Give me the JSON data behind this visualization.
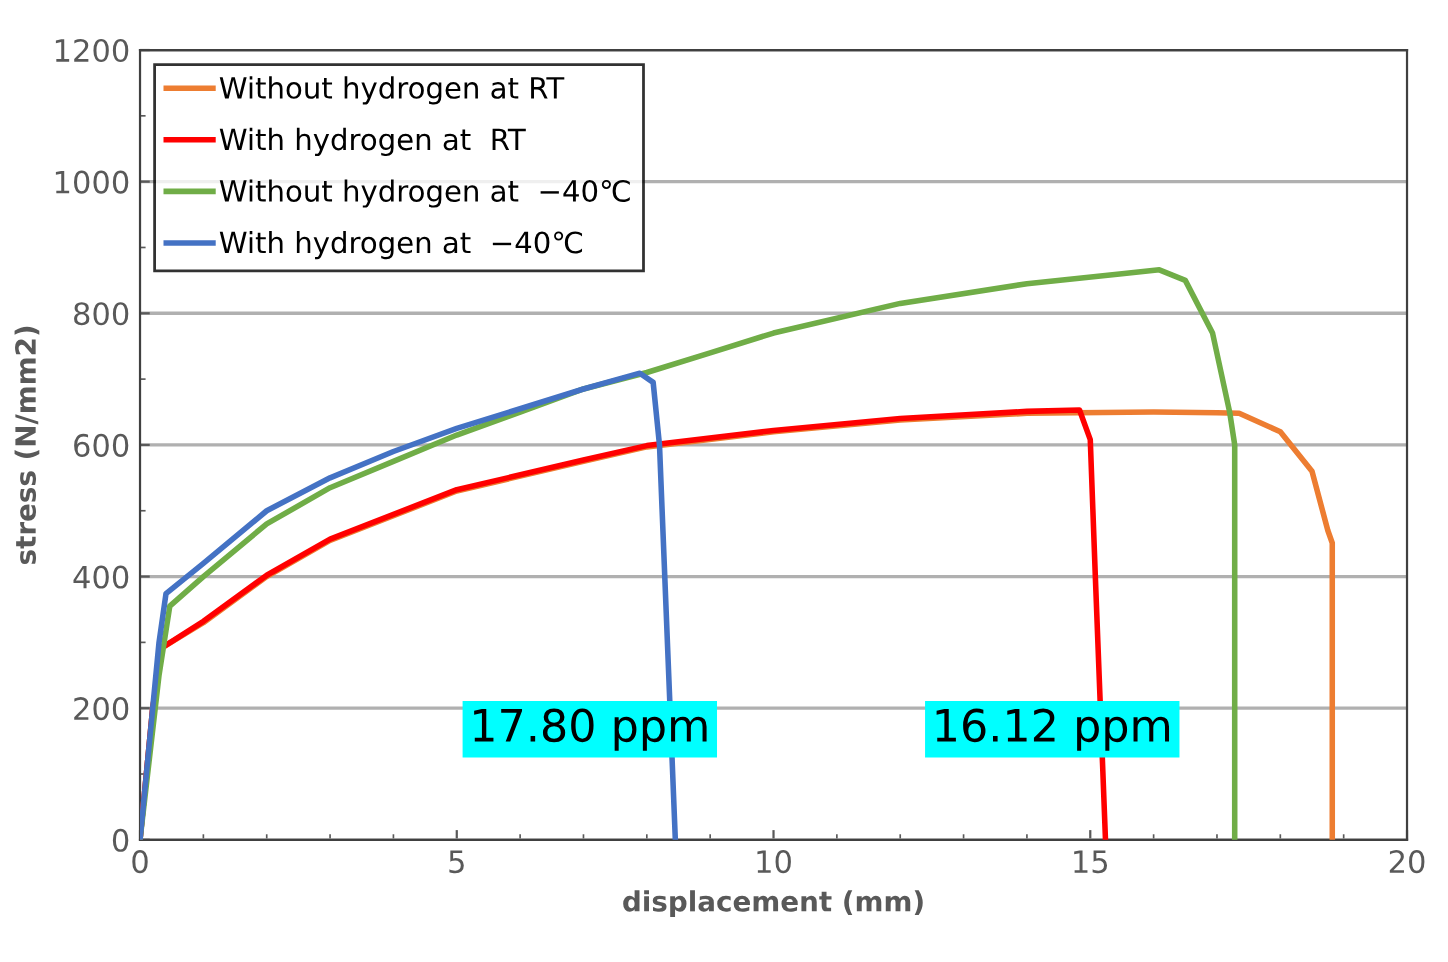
{
  "chart_data": {
    "type": "line",
    "xlabel": "displacement (mm)",
    "ylabel": "stress (N/mm2)",
    "xlim": [
      0,
      20
    ],
    "xticks": [
      0,
      5,
      10,
      15,
      20
    ],
    "ylim": [
      0,
      1200
    ],
    "yticks": [
      0,
      200,
      400,
      600,
      800,
      1000,
      1200
    ],
    "grid": "y",
    "legend": "top left",
    "marker": "none",
    "line_style": "solid",
    "annotations": [
      "17.80 ppm",
      "16.12 ppm"
    ],
    "series": [
      {
        "name": "Without hydrogen at RT",
        "color": "#ed7d31",
        "x": [
          0,
          0.2,
          0.35,
          1,
          2,
          3,
          5,
          7,
          8,
          10,
          12,
          14,
          16,
          17,
          17.35,
          18,
          18.5,
          18.75,
          18.82,
          18.82
        ],
        "values": [
          0,
          200,
          292,
          330,
          400,
          455,
          530,
          575,
          597,
          620,
          638,
          648,
          650,
          649,
          648,
          620,
          560,
          470,
          451,
          0
        ]
      },
      {
        "name": "With hydrogen at  RT",
        "color": "#ff0000",
        "x": [
          0,
          0.2,
          0.35,
          1,
          2,
          3,
          5,
          7,
          8,
          10,
          12,
          14,
          14.83,
          15.0,
          15.08,
          15.24
        ],
        "values": [
          0,
          200,
          292,
          332,
          402,
          457,
          532,
          577,
          599,
          622,
          640,
          651,
          653,
          608,
          400,
          0
        ]
      },
      {
        "name": "Without hydrogen at  −40℃",
        "color": "#70ad47",
        "x": [
          0,
          0.3,
          0.47,
          1,
          2,
          3,
          4,
          5,
          6,
          7,
          8,
          9,
          10,
          12,
          14,
          15.5,
          16.09,
          16.5,
          16.93,
          17.2,
          17.28,
          17.28
        ],
        "values": [
          0,
          250,
          355,
          400,
          480,
          535,
          575,
          615,
          650,
          685,
          710,
          740,
          770,
          815,
          845,
          860,
          866,
          850,
          770,
          650,
          600,
          0
        ]
      },
      {
        "name": "With hydrogen at  −40℃",
        "color": "#4472c4",
        "x": [
          0,
          0.3,
          0.41,
          1,
          2,
          3,
          4,
          5,
          6,
          7,
          7.89,
          8.1,
          8.2,
          8.45
        ],
        "values": [
          0,
          300,
          374,
          420,
          500,
          550,
          590,
          625,
          655,
          685,
          709,
          695,
          600,
          0
        ]
      }
    ]
  }
}
